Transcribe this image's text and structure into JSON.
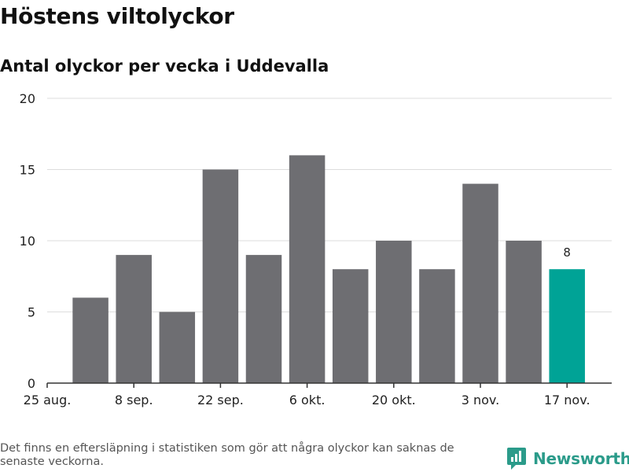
{
  "title": "Höstens viltolyckor",
  "subtitle": "Antal olyckor per vecka i Uddevalla",
  "footnote": "Det finns en eftersläpning i statistiken som gör att några olyckor kan saknas de senaste veckorna.",
  "brand": {
    "name": "Newsworthy",
    "icon": "newsworthy-logo-icon",
    "color": "#2b9b8a"
  },
  "colors": {
    "bar": "#6e6e72",
    "highlight": "#00a396",
    "grid": "#dddddd",
    "axis": "#333333"
  },
  "chart_data": {
    "type": "bar",
    "title": "Höstens viltolyckor",
    "subtitle": "Antal olyckor per vecka i Uddevalla",
    "xlabel": "",
    "ylabel": "",
    "categories": [
      "25 aug.",
      "1 sep.",
      "8 sep.",
      "15 sep.",
      "22 sep.",
      "29 sep.",
      "6 okt.",
      "13 okt.",
      "20 okt.",
      "27 okt.",
      "3 nov.",
      "10 nov.",
      "17 nov."
    ],
    "values": [
      0,
      6,
      9,
      5,
      15,
      9,
      16,
      8,
      10,
      8,
      14,
      10,
      8
    ],
    "highlight_index": 12,
    "data_labels": [
      {
        "index": 12,
        "text": "8"
      }
    ],
    "x_tick_labels": [
      "25 aug.",
      "8 sep.",
      "22 sep.",
      "6 okt.",
      "20 okt.",
      "3 nov.",
      "17 nov."
    ],
    "y_ticks": [
      0,
      5,
      10,
      15,
      20
    ],
    "ylim": [
      0,
      20
    ],
    "grid": true,
    "legend": "none"
  }
}
